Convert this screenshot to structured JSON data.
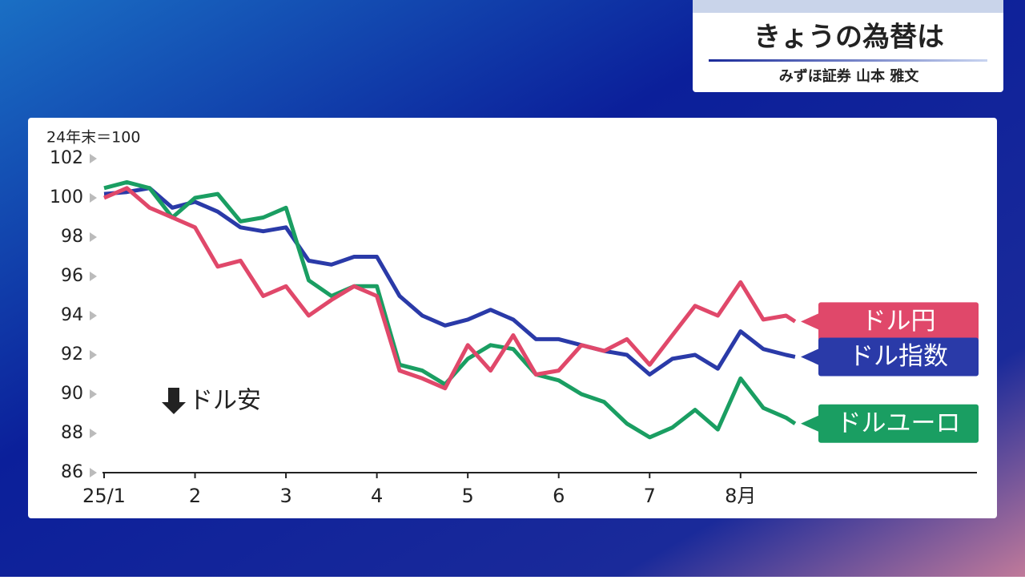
{
  "header": {
    "title": "きょうの為替は",
    "subtitle": "みずほ証券 山本 雅文"
  },
  "chart_data": {
    "type": "line",
    "y_label": "24年末＝100",
    "annotation": "ドル安",
    "x": [
      1,
      1.25,
      1.5,
      1.75,
      2,
      2.25,
      2.5,
      2.75,
      3,
      3.25,
      3.5,
      3.75,
      4,
      4.25,
      4.5,
      4.75,
      5,
      5.25,
      5.5,
      5.75,
      6,
      6.25,
      6.5,
      6.75,
      7,
      7.25,
      7.5,
      7.75,
      8,
      8.25,
      8.5,
      8.6
    ],
    "xlim": [
      1,
      10.6
    ],
    "xticks": [
      {
        "value": 1,
        "label": "25/1"
      },
      2,
      3,
      4,
      5,
      6,
      7,
      {
        "value": 8,
        "label": "8月"
      }
    ],
    "ylim": [
      86,
      102
    ],
    "yticks": [
      86,
      88,
      90,
      92,
      94,
      96,
      98,
      100,
      102
    ],
    "series": [
      {
        "name": "ドル円",
        "color": "#e0486a",
        "values": [
          100.0,
          100.5,
          99.5,
          99.0,
          98.5,
          96.5,
          96.8,
          95.0,
          95.5,
          94.0,
          94.8,
          95.5,
          95.0,
          91.2,
          90.8,
          90.3,
          92.5,
          91.2,
          93.0,
          91.0,
          91.2,
          92.5,
          92.2,
          92.8,
          91.5,
          93.0,
          94.5,
          94.0,
          95.7,
          93.8,
          94.0,
          93.7
        ]
      },
      {
        "name": "ドル指数",
        "color": "#2a3aa8",
        "values": [
          100.2,
          100.3,
          100.5,
          99.5,
          99.8,
          99.3,
          98.5,
          98.3,
          98.5,
          96.8,
          96.6,
          97.0,
          97.0,
          95.0,
          94.0,
          93.5,
          93.8,
          94.3,
          93.8,
          92.8,
          92.8,
          92.5,
          92.2,
          92.0,
          91.0,
          91.8,
          92.0,
          91.3,
          93.2,
          92.3,
          92.0,
          91.9
        ]
      },
      {
        "name": "ドルユーロ",
        "color": "#1a9e62",
        "values": [
          100.5,
          100.8,
          100.5,
          99.0,
          100.0,
          100.2,
          98.8,
          99.0,
          99.5,
          95.8,
          95.0,
          95.5,
          95.5,
          91.5,
          91.2,
          90.5,
          91.8,
          92.5,
          92.3,
          91.0,
          90.7,
          90.0,
          89.6,
          88.5,
          87.8,
          88.3,
          89.2,
          88.2,
          90.8,
          89.3,
          88.8,
          88.5
        ]
      }
    ]
  }
}
